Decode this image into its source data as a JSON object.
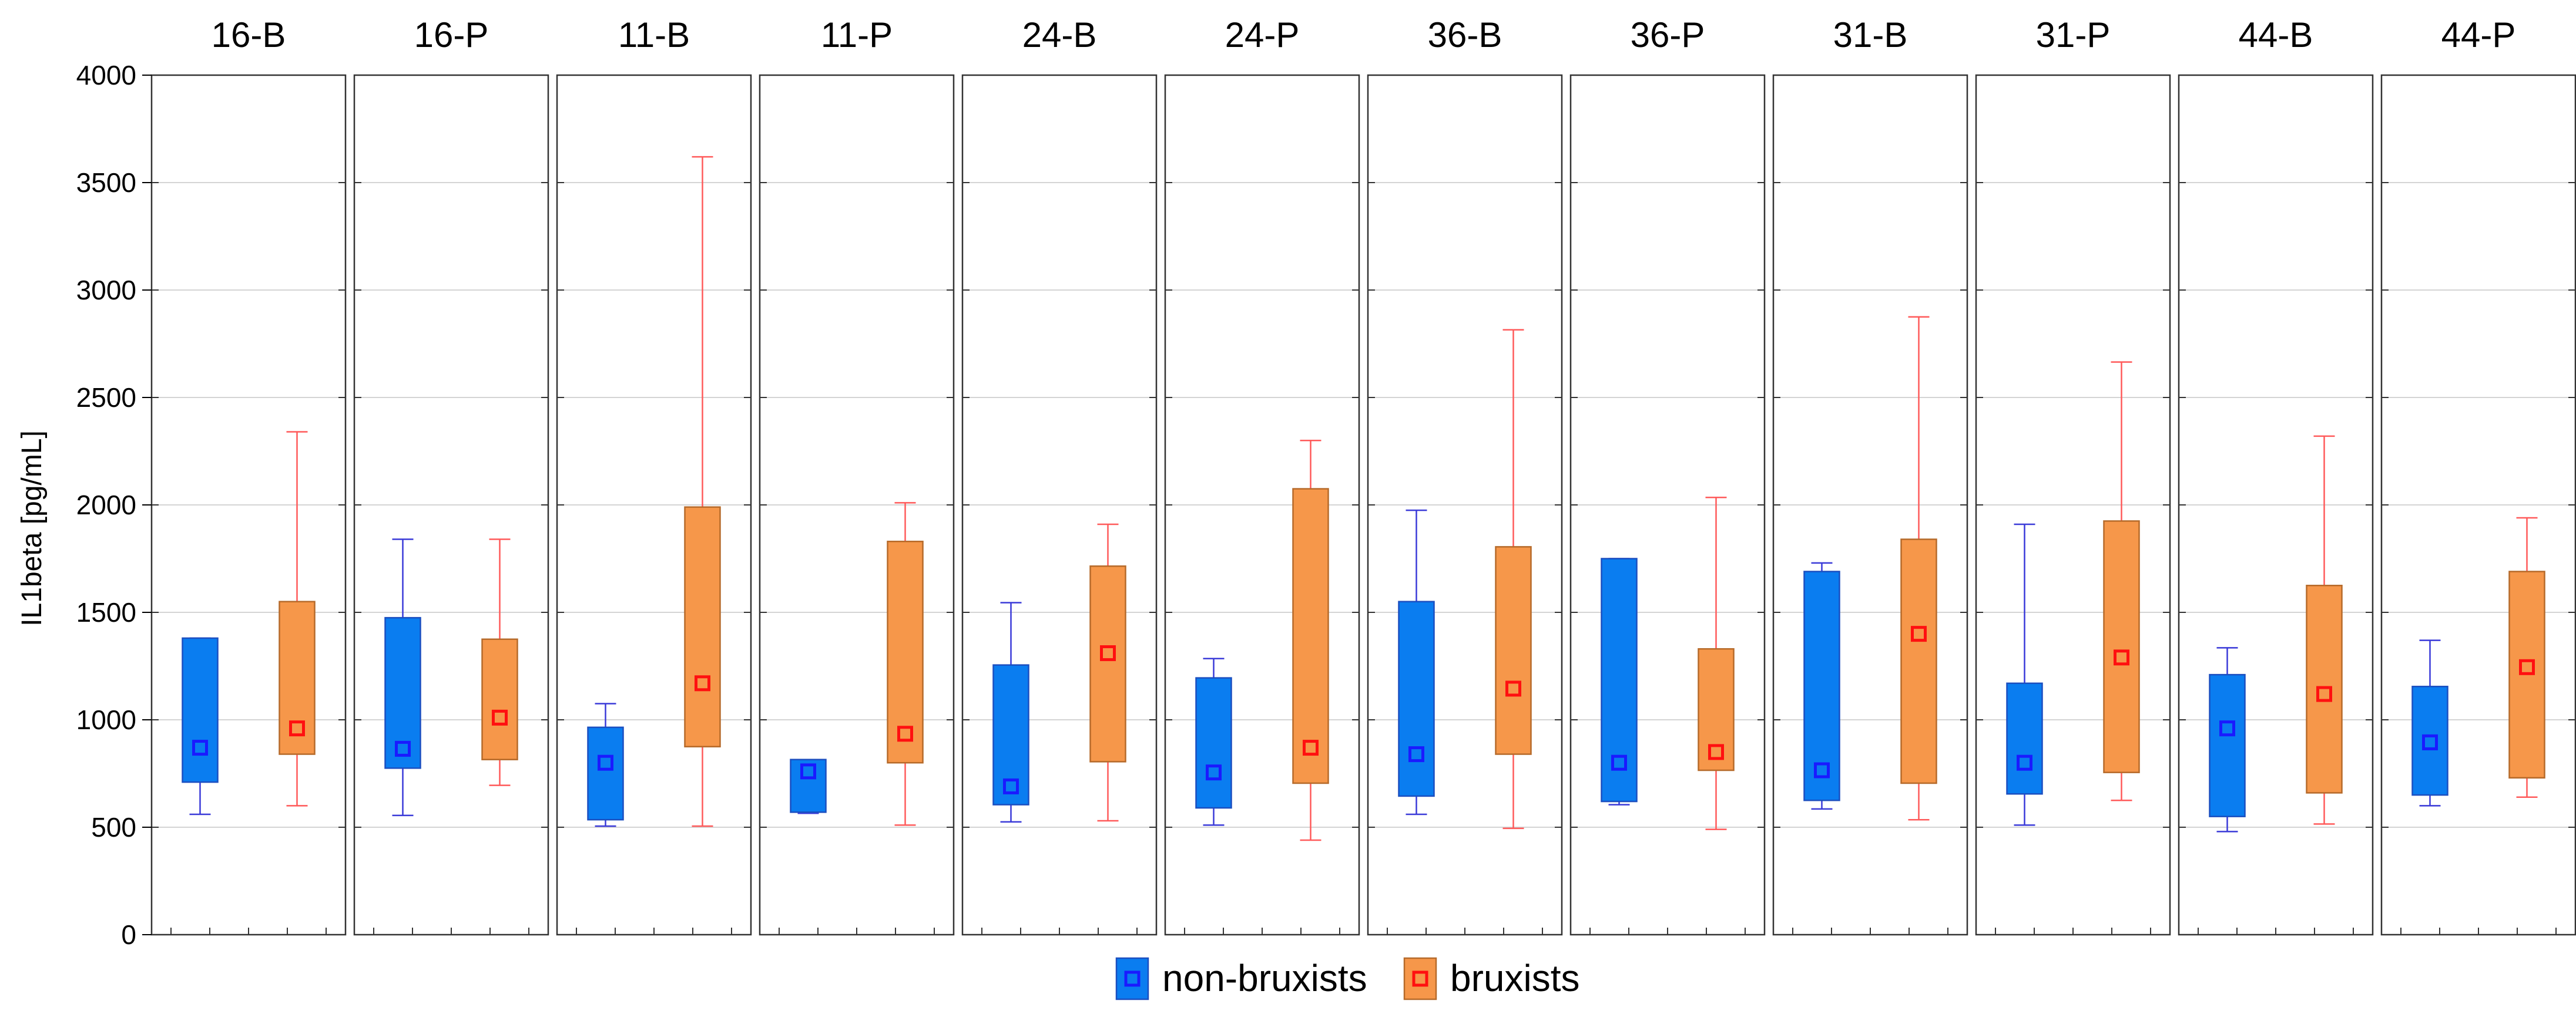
{
  "chart_data": {
    "type": "boxplot",
    "ylabel": "IL1beta [pg/mL]",
    "ylim": [
      0,
      4000
    ],
    "yticks": [
      "0",
      "500",
      "1000",
      "1500",
      "2000",
      "2500",
      "3000",
      "3500",
      "4000"
    ],
    "ytick_values": [
      0,
      500,
      1000,
      1500,
      2000,
      2500,
      3000,
      3500,
      4000
    ],
    "grid": true,
    "legend_position": "bottom-center",
    "legend": [
      {
        "name": "non-bruxists",
        "fill": "#0a7df0",
        "edge": "#1b4fc0",
        "marker": "#1a1aff",
        "whisker": "#3a3ad8"
      },
      {
        "name": "bruxists",
        "fill": "#f6974a",
        "edge": "#b66a2a",
        "marker": "#ff1010",
        "whisker": "#ff5a5a"
      }
    ],
    "panels": [
      {
        "title": "16-B",
        "non_bruxists": {
          "min": 560,
          "q1": 710,
          "median": 870,
          "q3": 1380,
          "max": 1380
        },
        "bruxists": {
          "min": 600,
          "q1": 840,
          "median": 960,
          "q3": 1550,
          "max": 2340
        }
      },
      {
        "title": "16-P",
        "non_bruxists": {
          "min": 555,
          "q1": 775,
          "median": 865,
          "q3": 1475,
          "max": 1840
        },
        "bruxists": {
          "min": 695,
          "q1": 815,
          "median": 1010,
          "q3": 1375,
          "max": 1840
        }
      },
      {
        "title": "11-B",
        "non_bruxists": {
          "min": 505,
          "q1": 535,
          "median": 800,
          "q3": 965,
          "max": 1075
        },
        "bruxists": {
          "min": 505,
          "q1": 875,
          "median": 1170,
          "q3": 1990,
          "max": 3620
        }
      },
      {
        "title": "11-P",
        "non_bruxists": {
          "min": 565,
          "q1": 570,
          "median": 760,
          "q3": 815,
          "max": 815
        },
        "bruxists": {
          "min": 510,
          "q1": 800,
          "median": 935,
          "q3": 1830,
          "max": 2010
        }
      },
      {
        "title": "24-B",
        "non_bruxists": {
          "min": 525,
          "q1": 605,
          "median": 690,
          "q3": 1255,
          "max": 1545
        },
        "bruxists": {
          "min": 530,
          "q1": 805,
          "median": 1310,
          "q3": 1715,
          "max": 1910
        }
      },
      {
        "title": "24-P",
        "non_bruxists": {
          "min": 510,
          "q1": 590,
          "median": 755,
          "q3": 1195,
          "max": 1285
        },
        "bruxists": {
          "min": 440,
          "q1": 705,
          "median": 870,
          "q3": 2075,
          "max": 2300
        }
      },
      {
        "title": "36-B",
        "non_bruxists": {
          "min": 560,
          "q1": 645,
          "median": 840,
          "q3": 1550,
          "max": 1975
        },
        "bruxists": {
          "min": 495,
          "q1": 840,
          "median": 1145,
          "q3": 1805,
          "max": 2815
        }
      },
      {
        "title": "36-P",
        "non_bruxists": {
          "min": 605,
          "q1": 620,
          "median": 800,
          "q3": 1750,
          "max": 1750
        },
        "bruxists": {
          "min": 490,
          "q1": 765,
          "median": 850,
          "q3": 1330,
          "max": 2035
        }
      },
      {
        "title": "31-B",
        "non_bruxists": {
          "min": 585,
          "q1": 625,
          "median": 765,
          "q3": 1690,
          "max": 1730
        },
        "bruxists": {
          "min": 535,
          "q1": 705,
          "median": 1400,
          "q3": 1840,
          "max": 2875
        }
      },
      {
        "title": "31-P",
        "non_bruxists": {
          "min": 510,
          "q1": 655,
          "median": 800,
          "q3": 1170,
          "max": 1910
        },
        "bruxists": {
          "min": 625,
          "q1": 755,
          "median": 1290,
          "q3": 1925,
          "max": 2665
        }
      },
      {
        "title": "44-B",
        "non_bruxists": {
          "min": 480,
          "q1": 550,
          "median": 960,
          "q3": 1210,
          "max": 1335
        },
        "bruxists": {
          "min": 515,
          "q1": 660,
          "median": 1120,
          "q3": 1625,
          "max": 2320
        }
      },
      {
        "title": "44-P",
        "non_bruxists": {
          "min": 600,
          "q1": 650,
          "median": 895,
          "q3": 1155,
          "max": 1370
        },
        "bruxists": {
          "min": 640,
          "q1": 730,
          "median": 1245,
          "q3": 1690,
          "max": 1940
        }
      }
    ]
  }
}
